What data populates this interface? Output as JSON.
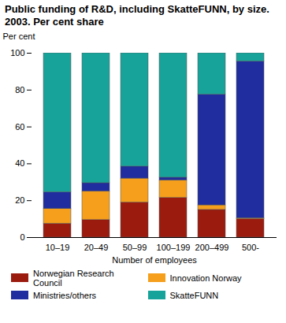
{
  "chart_data": {
    "type": "bar",
    "title": "Public funding of R&D, including SkatteFUNN, by size. 2003. Per cent share",
    "x_label": "Number of employees",
    "y_label": "Per cent",
    "stacked": true,
    "grid": false,
    "legend": "bottom",
    "categories": [
      "10–19",
      "20–49",
      "50–99",
      "100–199",
      "200–499",
      "500-"
    ],
    "series": [
      {
        "name": "Norwegian Research Council",
        "color": "#9b1b0f",
        "values": [
          7.5,
          9.5,
          19,
          21.5,
          15,
          10
        ]
      },
      {
        "name": "Innovation Norway",
        "color": "#f59f1c",
        "values": [
          8,
          15.5,
          13,
          9.5,
          2.5,
          0.5
        ]
      },
      {
        "name": "Ministries/others",
        "color": "#1f2d9e",
        "values": [
          9,
          4.5,
          6.5,
          1.5,
          60,
          85
        ]
      },
      {
        "name": "SkatteFUNN",
        "color": "#17a39a",
        "values": [
          75.5,
          70.5,
          61.5,
          67.5,
          22.5,
          4.5
        ]
      }
    ],
    "ylim": [
      0,
      100
    ],
    "yticks": [
      0,
      20,
      40,
      60,
      80,
      100
    ]
  }
}
